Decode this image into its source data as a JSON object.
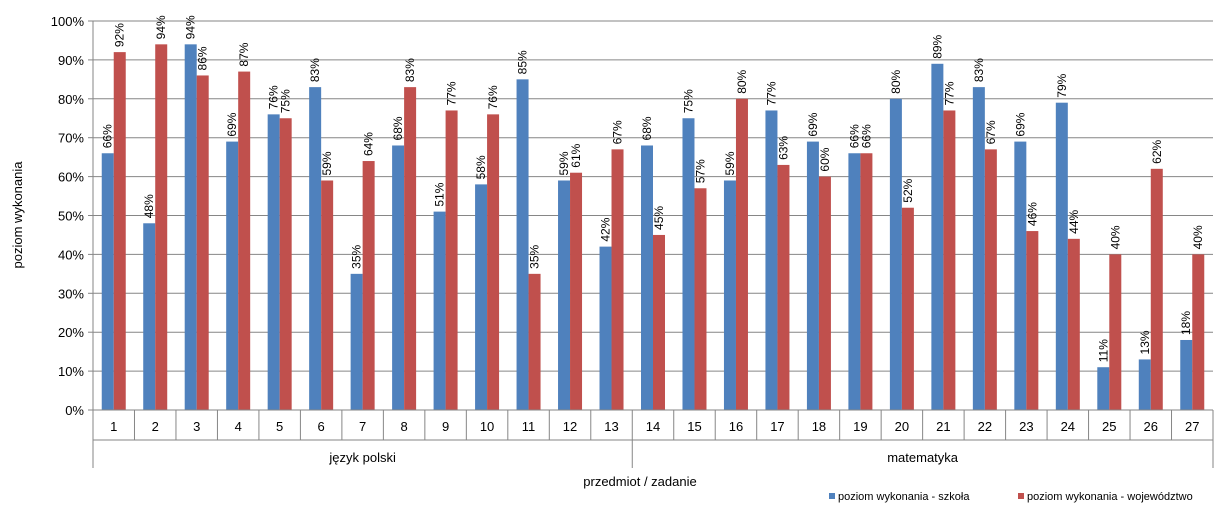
{
  "chart_data": {
    "type": "bar",
    "categories": [
      "1",
      "2",
      "3",
      "4",
      "5",
      "6",
      "7",
      "8",
      "9",
      "10",
      "11",
      "12",
      "13",
      "14",
      "15",
      "16",
      "17",
      "18",
      "19",
      "20",
      "21",
      "22",
      "23",
      "24",
      "25",
      "26",
      "27"
    ],
    "groups": [
      {
        "label": "język polski",
        "from": 0,
        "to": 12
      },
      {
        "label": "matematyka",
        "from": 13,
        "to": 26
      }
    ],
    "series": [
      {
        "name": "poziom wykonania - szkoła",
        "color": "#4F81BD",
        "values": [
          66,
          48,
          94,
          69,
          76,
          83,
          35,
          68,
          51,
          58,
          85,
          59,
          42,
          68,
          75,
          59,
          77,
          69,
          66,
          80,
          89,
          83,
          69,
          79,
          11,
          13,
          18
        ],
        "labels": [
          "66%",
          "48%",
          "94%",
          "69%",
          "76%",
          "83%",
          "35%",
          "68%",
          "51%",
          "58%",
          "85%",
          "59%",
          "42%",
          "68%",
          "75%",
          "59%",
          "77%",
          "69%",
          "66%",
          "80%",
          "89%",
          "83%",
          "69%",
          "79%",
          "11%",
          "13%",
          "18%"
        ]
      },
      {
        "name": "poziom wykonania - województwo",
        "color": "#C0504D",
        "values": [
          92,
          94,
          86,
          87,
          75,
          59,
          64,
          83,
          77,
          76,
          35,
          61,
          67,
          45,
          57,
          80,
          63,
          60,
          66,
          52,
          77,
          67,
          46,
          44,
          40,
          62,
          40
        ],
        "labels": [
          "92%",
          "94%",
          "86%",
          "87%",
          "75%",
          "59%",
          "64%",
          "83%",
          "77%",
          "76%",
          "35%",
          "61%",
          "67%",
          "45%",
          "57%",
          "80%",
          "63%",
          "60%",
          "66%",
          "52%",
          "77%",
          "67%",
          "46%",
          "44%",
          "40%",
          "62%",
          "40%"
        ]
      }
    ],
    "xlabel": "przedmiot / zadanie",
    "ylabel": "poziom wykonania",
    "ylim": [
      0,
      100
    ],
    "yticks": [
      "0%",
      "10%",
      "20%",
      "30%",
      "40%",
      "50%",
      "60%",
      "70%",
      "80%",
      "90%",
      "100%"
    ],
    "grid": true,
    "legend": "bottom-right"
  }
}
